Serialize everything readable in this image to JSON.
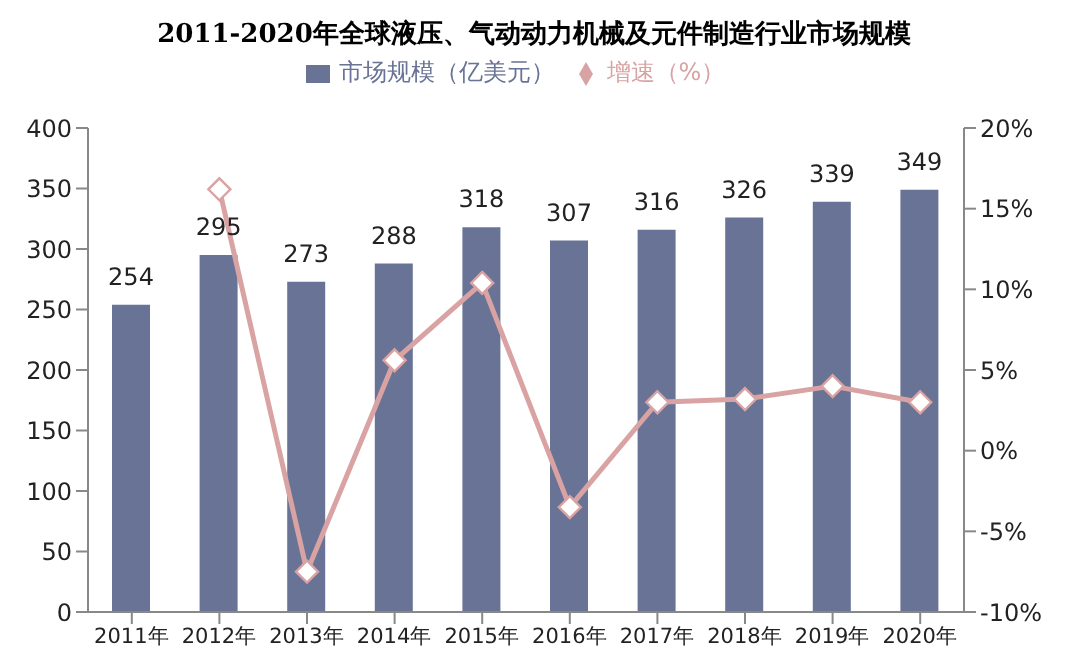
{
  "chart_data": {
    "type": "bar",
    "title": "2011-2020年全球液压、气动动力机械及元件制造行业市场规模",
    "categories": [
      "2011年",
      "2012年",
      "2013年",
      "2014年",
      "2015年",
      "2016年",
      "2017年",
      "2018年",
      "2019年",
      "2020年"
    ],
    "series": [
      {
        "name": "市场规模（亿美元）",
        "color": "#687396",
        "values": [
          254,
          295,
          273,
          288,
          318,
          307,
          316,
          326,
          339,
          349
        ],
        "value_labels": [
          "254",
          "295",
          "273",
          "288",
          "318",
          "307",
          "316",
          "326",
          "339",
          "349"
        ]
      },
      {
        "name": "增速（%）",
        "type": "line",
        "axis": "y2",
        "color": "#d9a3a3",
        "marker": "diamond",
        "values": [
          null,
          16.2,
          -7.5,
          5.6,
          10.4,
          -3.5,
          3.0,
          3.2,
          4.0,
          3.0
        ]
      }
    ],
    "ylim": [
      0,
      400
    ],
    "yticks": [
      0,
      50,
      100,
      150,
      200,
      250,
      300,
      350,
      400
    ],
    "y2lim": [
      -10,
      20
    ],
    "y2ticks": [
      {
        "value": -10,
        "label": "-10%"
      },
      {
        "value": -5,
        "label": "-5%"
      },
      {
        "value": 0,
        "label": "0%"
      },
      {
        "value": 5,
        "label": "5%"
      },
      {
        "value": 10,
        "label": "10%"
      },
      {
        "value": 15,
        "label": "15%"
      },
      {
        "value": 20,
        "label": "20%"
      }
    ],
    "legend": "top",
    "grid": false
  }
}
